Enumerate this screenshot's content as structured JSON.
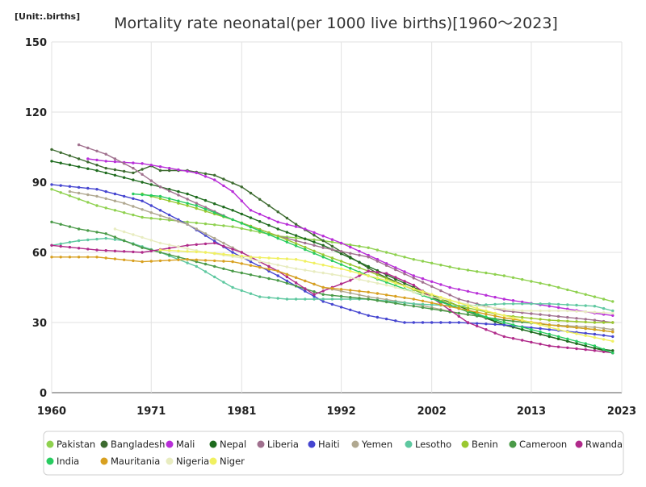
{
  "chart_data": {
    "type": "line",
    "title": "Mortality rate neonatal(per 1000 live births)[1960～2023]",
    "unit_label": "[Unit:.births]",
    "xlabel": "",
    "ylabel": "",
    "xlim": [
      1960,
      2023
    ],
    "ylim": [
      0,
      150
    ],
    "x_ticks": [
      1960,
      1971,
      1981,
      1992,
      2002,
      2013,
      2023
    ],
    "y_ticks": [
      0,
      30,
      60,
      90,
      120,
      150
    ],
    "grid": true,
    "legend_position": "bottom",
    "series": [
      {
        "name": "Pakistan",
        "color": "#8fd14f",
        "points": [
          [
            1960,
            87
          ],
          [
            1965,
            80
          ],
          [
            1970,
            75
          ],
          [
            1975,
            73
          ],
          [
            1980,
            71
          ],
          [
            1985,
            67
          ],
          [
            1990,
            65
          ],
          [
            1995,
            62
          ],
          [
            2000,
            57
          ],
          [
            2005,
            53
          ],
          [
            2010,
            50
          ],
          [
            2015,
            46
          ],
          [
            2020,
            41
          ],
          [
            2022,
            39
          ]
        ]
      },
      {
        "name": "Bangladesh",
        "color": "#3d6b30",
        "points": [
          [
            1960,
            104
          ],
          [
            1963,
            100
          ],
          [
            1966,
            96
          ],
          [
            1969,
            94
          ],
          [
            1971,
            97
          ],
          [
            1972,
            95
          ],
          [
            1975,
            95
          ],
          [
            1978,
            93
          ],
          [
            1981,
            88
          ],
          [
            1984,
            80
          ],
          [
            1987,
            72
          ],
          [
            1990,
            65
          ],
          [
            1993,
            58
          ],
          [
            1996,
            51
          ],
          [
            2000,
            44
          ],
          [
            2005,
            36
          ],
          [
            2010,
            29
          ],
          [
            2015,
            24
          ],
          [
            2020,
            19
          ],
          [
            2022,
            17
          ]
        ]
      },
      {
        "name": "Mali",
        "color": "#b82ed8",
        "points": [
          [
            1964,
            100
          ],
          [
            1966,
            99
          ],
          [
            1970,
            98
          ],
          [
            1973,
            96
          ],
          [
            1976,
            94
          ],
          [
            1978,
            91
          ],
          [
            1980,
            86
          ],
          [
            1982,
            78
          ],
          [
            1985,
            73
          ],
          [
            1988,
            70
          ],
          [
            1992,
            64
          ],
          [
            1996,
            57
          ],
          [
            2000,
            50
          ],
          [
            2004,
            45
          ],
          [
            2010,
            40
          ],
          [
            2015,
            37
          ],
          [
            2020,
            34
          ],
          [
            2022,
            33
          ]
        ]
      },
      {
        "name": "Nepal",
        "color": "#1e6b1e",
        "points": [
          [
            1960,
            99
          ],
          [
            1965,
            95
          ],
          [
            1970,
            90
          ],
          [
            1975,
            85
          ],
          [
            1980,
            78
          ],
          [
            1985,
            70
          ],
          [
            1990,
            63
          ],
          [
            1995,
            54
          ],
          [
            2000,
            45
          ],
          [
            2005,
            37
          ],
          [
            2010,
            29
          ],
          [
            2015,
            24
          ],
          [
            2020,
            19
          ],
          [
            2022,
            18
          ]
        ]
      },
      {
        "name": "Liberia",
        "color": "#a0708e",
        "points": [
          [
            1963,
            106
          ],
          [
            1966,
            102
          ],
          [
            1969,
            96
          ],
          [
            1972,
            88
          ],
          [
            1976,
            81
          ],
          [
            1980,
            74
          ],
          [
            1985,
            67
          ],
          [
            1990,
            62
          ],
          [
            1995,
            58
          ],
          [
            2000,
            49
          ],
          [
            2005,
            40
          ],
          [
            2010,
            35
          ],
          [
            2015,
            33
          ],
          [
            2020,
            31
          ],
          [
            2022,
            30
          ]
        ]
      },
      {
        "name": "Haiti",
        "color": "#4545d0",
        "points": [
          [
            1960,
            89
          ],
          [
            1965,
            87
          ],
          [
            1970,
            82
          ],
          [
            1975,
            72
          ],
          [
            1980,
            60
          ],
          [
            1985,
            50
          ],
          [
            1990,
            39
          ],
          [
            1995,
            33
          ],
          [
            1999,
            30
          ],
          [
            2005,
            30
          ],
          [
            2010,
            29
          ],
          [
            2015,
            27
          ],
          [
            2020,
            25
          ],
          [
            2022,
            24
          ]
        ]
      },
      {
        "name": "Yemen",
        "color": "#b0a890",
        "points": [
          [
            1962,
            86
          ],
          [
            1965,
            84
          ],
          [
            1968,
            81
          ],
          [
            1971,
            77
          ],
          [
            1975,
            72
          ],
          [
            1980,
            62
          ],
          [
            1985,
            52
          ],
          [
            1990,
            45
          ],
          [
            1995,
            41
          ],
          [
            2000,
            38
          ],
          [
            2005,
            34
          ],
          [
            2010,
            31
          ],
          [
            2015,
            29
          ],
          [
            2020,
            28
          ],
          [
            2022,
            27
          ]
        ]
      },
      {
        "name": "Lesotho",
        "color": "#5ec8a0",
        "points": [
          [
            1960,
            63
          ],
          [
            1963,
            65
          ],
          [
            1966,
            66
          ],
          [
            1968,
            65
          ],
          [
            1972,
            60
          ],
          [
            1976,
            54
          ],
          [
            1980,
            45
          ],
          [
            1983,
            41
          ],
          [
            1986,
            40
          ],
          [
            1990,
            40
          ],
          [
            1995,
            40
          ],
          [
            2000,
            38
          ],
          [
            2005,
            37
          ],
          [
            2010,
            38
          ],
          [
            2015,
            38
          ],
          [
            2020,
            37
          ],
          [
            2022,
            35
          ]
        ]
      },
      {
        "name": "Benin",
        "color": "#9ac830",
        "points": [
          [
            1970,
            85
          ],
          [
            1975,
            80
          ],
          [
            1980,
            74
          ],
          [
            1985,
            67
          ],
          [
            1990,
            59
          ],
          [
            1995,
            52
          ],
          [
            2000,
            44
          ],
          [
            2005,
            37
          ],
          [
            2010,
            33
          ],
          [
            2015,
            31
          ],
          [
            2020,
            30
          ],
          [
            2022,
            30
          ]
        ]
      },
      {
        "name": "Cameroon",
        "color": "#4a9a48",
        "points": [
          [
            1960,
            73
          ],
          [
            1963,
            70
          ],
          [
            1966,
            68
          ],
          [
            1970,
            62
          ],
          [
            1975,
            57
          ],
          [
            1980,
            52
          ],
          [
            1985,
            48
          ],
          [
            1990,
            42
          ],
          [
            1995,
            40
          ],
          [
            2000,
            37
          ],
          [
            2005,
            34
          ],
          [
            2010,
            31
          ],
          [
            2015,
            29
          ],
          [
            2020,
            27
          ],
          [
            2022,
            26
          ]
        ]
      },
      {
        "name": "Rwanda",
        "color": "#b02a8a",
        "points": [
          [
            1960,
            63
          ],
          [
            1965,
            61
          ],
          [
            1970,
            60
          ],
          [
            1975,
            63
          ],
          [
            1978,
            64
          ],
          [
            1981,
            60
          ],
          [
            1985,
            52
          ],
          [
            1989,
            42
          ],
          [
            1993,
            48
          ],
          [
            1995,
            52
          ],
          [
            1997,
            51
          ],
          [
            2000,
            46
          ],
          [
            2003,
            38
          ],
          [
            2006,
            30
          ],
          [
            2010,
            24
          ],
          [
            2015,
            20
          ],
          [
            2020,
            18
          ],
          [
            2022,
            17
          ]
        ]
      },
      {
        "name": "India",
        "color": "#28cc60",
        "points": [
          [
            1969,
            85
          ],
          [
            1972,
            84
          ],
          [
            1976,
            80
          ],
          [
            1980,
            74
          ],
          [
            1985,
            66
          ],
          [
            1990,
            58
          ],
          [
            1995,
            50
          ],
          [
            2000,
            43
          ],
          [
            2005,
            36
          ],
          [
            2010,
            30
          ],
          [
            2015,
            25
          ],
          [
            2020,
            20
          ],
          [
            2022,
            17
          ]
        ]
      },
      {
        "name": "Mauritania",
        "color": "#d8a020",
        "points": [
          [
            1960,
            58
          ],
          [
            1965,
            58
          ],
          [
            1970,
            56
          ],
          [
            1975,
            57
          ],
          [
            1980,
            56
          ],
          [
            1985,
            52
          ],
          [
            1990,
            45
          ],
          [
            1995,
            43
          ],
          [
            2000,
            40
          ],
          [
            2005,
            36
          ],
          [
            2010,
            32
          ],
          [
            2015,
            29
          ],
          [
            2020,
            27
          ],
          [
            2022,
            26
          ]
        ]
      },
      {
        "name": "Nigeria",
        "color": "#e8ecc0",
        "points": [
          [
            1967,
            70
          ],
          [
            1972,
            64
          ],
          [
            1977,
            60
          ],
          [
            1982,
            57
          ],
          [
            1987,
            53
          ],
          [
            1992,
            50
          ],
          [
            1997,
            46
          ],
          [
            2002,
            41
          ],
          [
            2007,
            37
          ],
          [
            2012,
            35
          ],
          [
            2017,
            35
          ],
          [
            2022,
            34
          ]
        ]
      },
      {
        "name": "Niger",
        "color": "#f0f060",
        "points": [
          [
            1972,
            61
          ],
          [
            1977,
            60
          ],
          [
            1982,
            58
          ],
          [
            1987,
            57
          ],
          [
            1992,
            53
          ],
          [
            1997,
            48
          ],
          [
            2002,
            42
          ],
          [
            2007,
            36
          ],
          [
            2012,
            31
          ],
          [
            2017,
            26
          ],
          [
            2022,
            22
          ]
        ]
      }
    ]
  }
}
